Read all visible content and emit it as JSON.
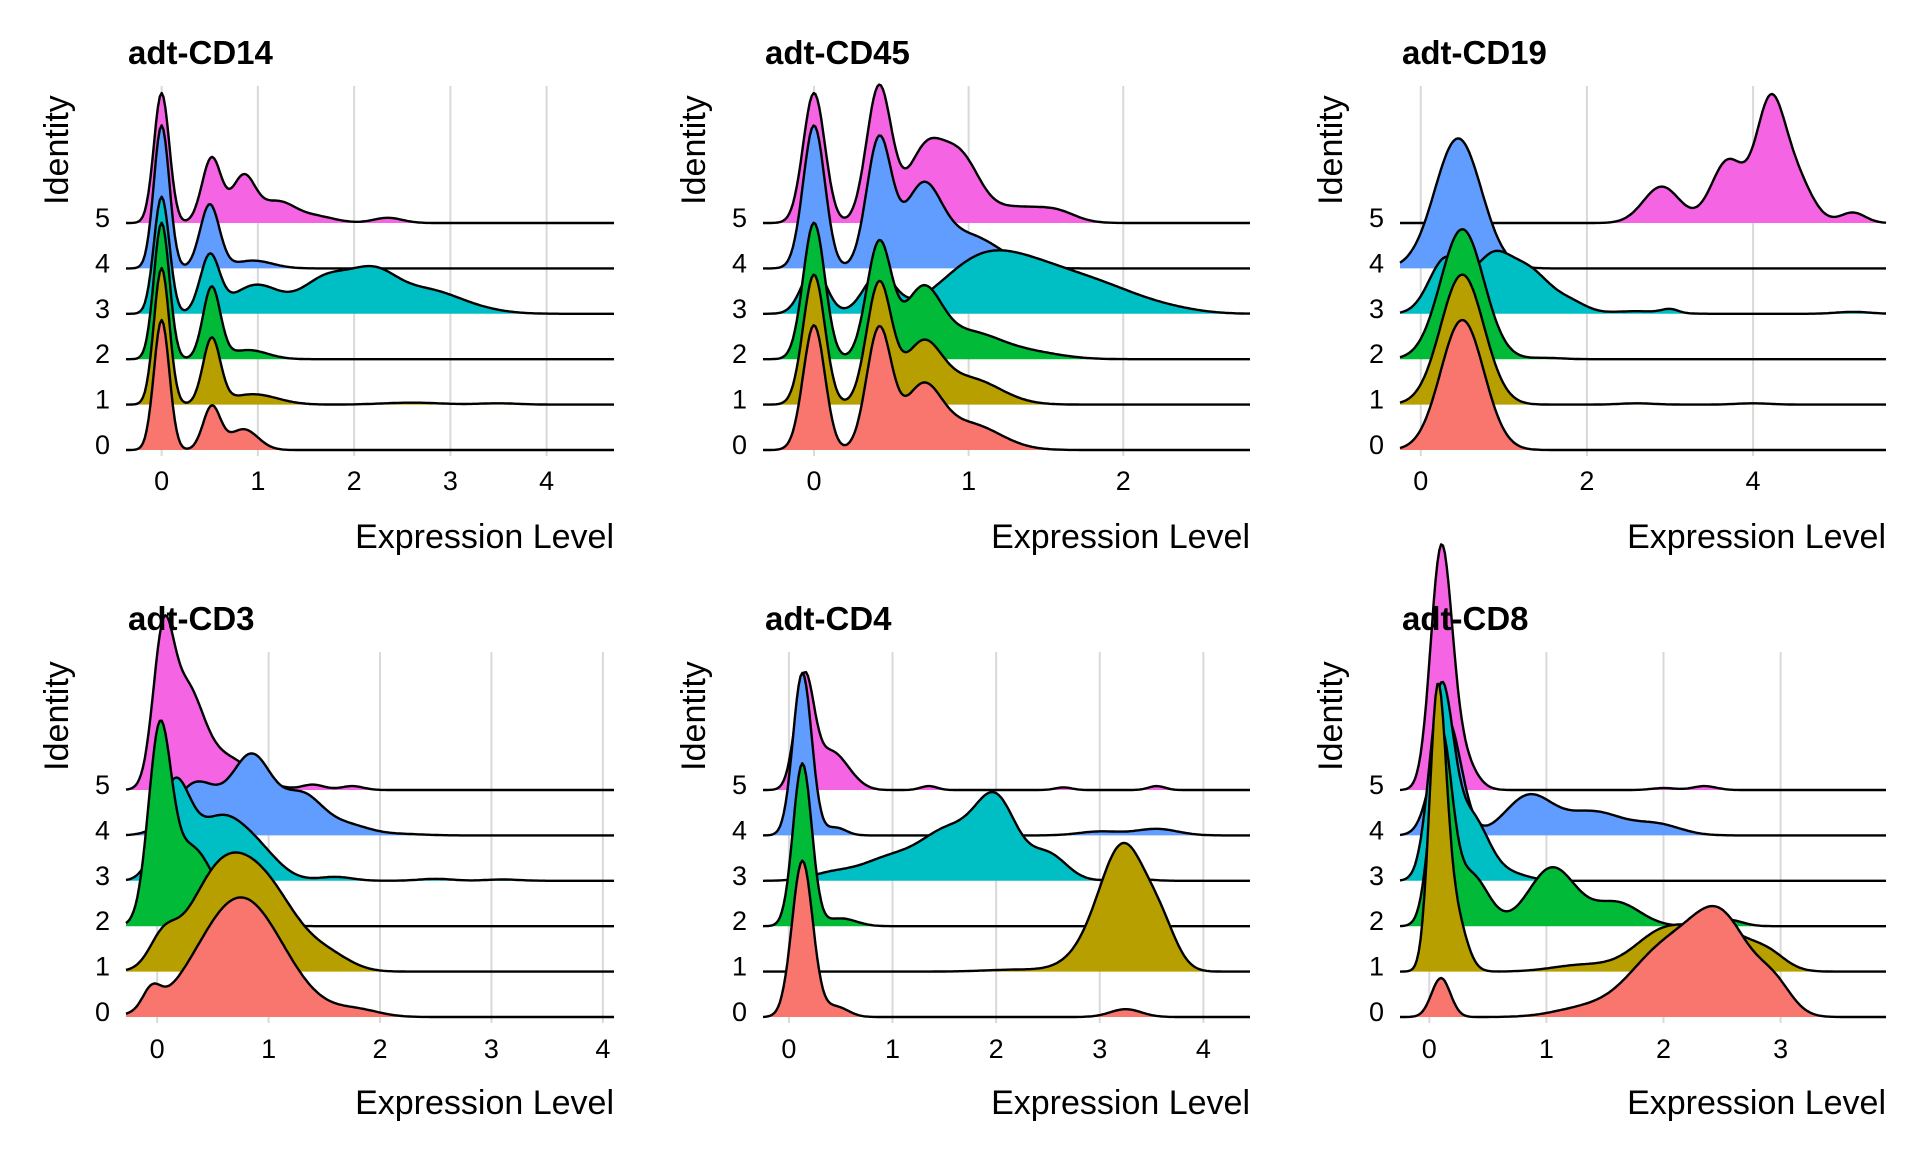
{
  "chart_data": [
    {
      "type": "area",
      "title": "adt-CD14",
      "xlabel": "Expression Level",
      "ylabel": "Identity",
      "xlim": [
        -0.37,
        4.7
      ],
      "xticks": [
        0,
        1,
        2,
        3,
        4
      ],
      "identities": [
        "0",
        "1",
        "2",
        "3",
        "4",
        "5"
      ],
      "grid": true,
      "legend": "none",
      "series": [
        {
          "identity": "0",
          "color": "#F8766D",
          "peaks": [
            [
              0.0,
              1.0,
              0.08
            ],
            [
              0.52,
              0.33,
              0.09
            ],
            [
              0.85,
              0.16,
              0.15
            ]
          ]
        },
        {
          "identity": "1",
          "color": "#B79F00",
          "peaks": [
            [
              0.0,
              1.05,
              0.08
            ],
            [
              0.52,
              0.5,
              0.09
            ],
            [
              0.95,
              0.08,
              0.25
            ],
            [
              2.6,
              0.015,
              0.3
            ],
            [
              3.5,
              0.01,
              0.2
            ]
          ]
        },
        {
          "identity": "2",
          "color": "#00BA38",
          "peaks": [
            [
              0.0,
              1.05,
              0.08
            ],
            [
              0.52,
              0.55,
              0.09
            ],
            [
              0.9,
              0.07,
              0.2
            ]
          ]
        },
        {
          "identity": "3",
          "color": "#00BFC4",
          "peaks": [
            [
              0.0,
              0.9,
              0.08
            ],
            [
              0.5,
              0.43,
              0.1
            ],
            [
              0.98,
              0.22,
              0.25
            ],
            [
              1.7,
              0.26,
              0.25
            ],
            [
              2.2,
              0.3,
              0.25
            ],
            [
              2.75,
              0.16,
              0.3
            ],
            [
              3.2,
              0.04,
              0.3
            ]
          ]
        },
        {
          "identity": "4",
          "color": "#619CFF",
          "peaks": [
            [
              0.0,
              1.1,
              0.08
            ],
            [
              0.5,
              0.49,
              0.1
            ],
            [
              0.95,
              0.06,
              0.2
            ]
          ]
        },
        {
          "identity": "5",
          "color": "#F564E3",
          "peaks": [
            [
              0.0,
              1.0,
              0.08
            ],
            [
              0.52,
              0.5,
              0.1
            ],
            [
              0.85,
              0.35,
              0.12
            ],
            [
              1.2,
              0.16,
              0.18
            ],
            [
              1.6,
              0.05,
              0.2
            ],
            [
              2.35,
              0.04,
              0.15
            ]
          ]
        }
      ]
    },
    {
      "type": "area",
      "title": "adt-CD45",
      "xlabel": "Expression Level",
      "ylabel": "Identity",
      "xlim": [
        -0.33,
        2.82
      ],
      "xticks": [
        0,
        1,
        2
      ],
      "identities": [
        "0",
        "1",
        "2",
        "3",
        "4",
        "5"
      ],
      "grid": true,
      "legend": "none",
      "series": [
        {
          "identity": "0",
          "color": "#F8766D",
          "peaks": [
            [
              0.0,
              0.96,
              0.07
            ],
            [
              0.42,
              0.92,
              0.08
            ],
            [
              0.7,
              0.45,
              0.12
            ],
            [
              1.0,
              0.2,
              0.2
            ]
          ]
        },
        {
          "identity": "1",
          "color": "#B79F00",
          "peaks": [
            [
              0.0,
              1.0,
              0.07
            ],
            [
              0.42,
              0.92,
              0.08
            ],
            [
              0.7,
              0.43,
              0.12
            ],
            [
              1.0,
              0.2,
              0.2
            ]
          ]
        },
        {
          "identity": "2",
          "color": "#00BA38",
          "peaks": [
            [
              0.0,
              1.05,
              0.07
            ],
            [
              0.42,
              0.88,
              0.08
            ],
            [
              0.7,
              0.5,
              0.12
            ],
            [
              1.0,
              0.2,
              0.2
            ],
            [
              1.4,
              0.05,
              0.2
            ]
          ]
        },
        {
          "identity": "3",
          "color": "#00BFC4",
          "peaks": [
            [
              0.0,
              0.35,
              0.08
            ],
            [
              0.42,
              0.3,
              0.1
            ],
            [
              1.05,
              0.34,
              0.25
            ],
            [
              1.45,
              0.3,
              0.28
            ],
            [
              1.9,
              0.15,
              0.25
            ],
            [
              2.3,
              0.03,
              0.2
            ]
          ]
        },
        {
          "identity": "4",
          "color": "#619CFF",
          "peaks": [
            [
              0.0,
              1.1,
              0.07
            ],
            [
              0.42,
              0.98,
              0.08
            ],
            [
              0.7,
              0.58,
              0.12
            ],
            [
              1.0,
              0.25,
              0.2
            ]
          ]
        },
        {
          "identity": "5",
          "color": "#F564E3",
          "peaks": [
            [
              0.0,
              1.0,
              0.07
            ],
            [
              0.42,
              1.04,
              0.08
            ],
            [
              0.72,
              0.55,
              0.12
            ],
            [
              0.95,
              0.45,
              0.12
            ],
            [
              1.3,
              0.12,
              0.2
            ],
            [
              1.58,
              0.06,
              0.12
            ]
          ]
        }
      ]
    },
    {
      "type": "area",
      "title": "adt-CD19",
      "xlabel": "Expression Level",
      "ylabel": "Identity",
      "xlim": [
        -0.25,
        5.6
      ],
      "xticks": [
        0,
        2,
        4
      ],
      "identities": [
        "0",
        "1",
        "2",
        "3",
        "4",
        "5"
      ],
      "grid": true,
      "legend": "none",
      "series": [
        {
          "identity": "0",
          "color": "#F8766D",
          "peaks": [
            [
              0.5,
              1.0,
              0.26
            ]
          ]
        },
        {
          "identity": "1",
          "color": "#B79F00",
          "peaks": [
            [
              0.5,
              1.0,
              0.26
            ],
            [
              2.6,
              0.01,
              0.2
            ],
            [
              4.0,
              0.01,
              0.2
            ]
          ]
        },
        {
          "identity": "2",
          "color": "#00BA38",
          "peaks": [
            [
              0.5,
              1.0,
              0.26
            ],
            [
              1.5,
              0.01,
              0.2
            ]
          ]
        },
        {
          "identity": "3",
          "color": "#00BFC4",
          "peaks": [
            [
              0.3,
              0.42,
              0.2
            ],
            [
              0.85,
              0.4,
              0.22
            ],
            [
              1.3,
              0.32,
              0.25
            ],
            [
              1.8,
              0.08,
              0.2
            ],
            [
              2.6,
              0.02,
              0.3
            ],
            [
              3.0,
              0.03,
              0.1
            ],
            [
              5.2,
              0.015,
              0.2
            ]
          ]
        },
        {
          "identity": "4",
          "color": "#619CFF",
          "peaks": [
            [
              0.45,
              1.0,
              0.28
            ]
          ]
        },
        {
          "identity": "5",
          "color": "#F564E3",
          "peaks": [
            [
              2.9,
              0.28,
              0.22
            ],
            [
              3.7,
              0.48,
              0.2
            ],
            [
              4.2,
              0.85,
              0.17
            ],
            [
              4.5,
              0.35,
              0.2
            ],
            [
              5.2,
              0.08,
              0.15
            ]
          ]
        }
      ]
    },
    {
      "type": "area",
      "title": "adt-CD3",
      "xlabel": "Expression Level",
      "ylabel": "Identity",
      "xlim": [
        -0.28,
        4.1
      ],
      "xticks": [
        0,
        1,
        2,
        3,
        4
      ],
      "identities": [
        "0",
        "1",
        "2",
        "3",
        "4",
        "5"
      ],
      "grid": true,
      "legend": "none",
      "series": [
        {
          "identity": "0",
          "color": "#F8766D",
          "peaks": [
            [
              -0.05,
              0.15,
              0.08
            ],
            [
              0.75,
              0.92,
              0.38
            ],
            [
              1.8,
              0.05,
              0.2
            ]
          ]
        },
        {
          "identity": "1",
          "color": "#B79F00",
          "peaks": [
            [
              0.05,
              0.2,
              0.12
            ],
            [
              0.55,
              0.7,
              0.28
            ],
            [
              1.0,
              0.55,
              0.28
            ],
            [
              1.55,
              0.1,
              0.2
            ]
          ]
        },
        {
          "identity": "2",
          "color": "#00BA38",
          "peaks": [
            [
              0.02,
              1.35,
              0.1
            ],
            [
              0.3,
              0.6,
              0.2
            ],
            [
              0.75,
              0.08,
              0.2
            ]
          ]
        },
        {
          "identity": "3",
          "color": "#00BFC4",
          "peaks": [
            [
              0.15,
              0.7,
              0.14
            ],
            [
              0.55,
              0.45,
              0.22
            ],
            [
              0.9,
              0.2,
              0.2
            ],
            [
              1.6,
              0.03,
              0.15
            ],
            [
              2.5,
              0.015,
              0.15
            ],
            [
              3.1,
              0.01,
              0.15
            ]
          ]
        },
        {
          "identity": "4",
          "color": "#619CFF",
          "peaks": [
            [
              0.35,
              0.4,
              0.2
            ],
            [
              0.85,
              0.6,
              0.18
            ],
            [
              1.3,
              0.3,
              0.18
            ],
            [
              1.7,
              0.08,
              0.2
            ],
            [
              2.2,
              0.01,
              0.2
            ]
          ]
        },
        {
          "identity": "5",
          "color": "#F564E3",
          "peaks": [
            [
              0.05,
              1.0,
              0.09
            ],
            [
              0.25,
              0.7,
              0.15
            ],
            [
              0.6,
              0.25,
              0.25
            ],
            [
              1.4,
              0.04,
              0.1
            ],
            [
              1.75,
              0.03,
              0.1
            ]
          ]
        }
      ]
    },
    {
      "type": "area",
      "title": "adt-CD4",
      "xlabel": "Expression Level",
      "ylabel": "Identity",
      "xlim": [
        -0.25,
        4.45
      ],
      "xticks": [
        0,
        1,
        2,
        3,
        4
      ],
      "identities": [
        "0",
        "1",
        "2",
        "3",
        "4",
        "5"
      ],
      "grid": true,
      "legend": "none",
      "series": [
        {
          "identity": "0",
          "color": "#F8766D",
          "peaks": [
            [
              0.13,
              1.2,
              0.1
            ],
            [
              0.45,
              0.08,
              0.12
            ],
            [
              3.25,
              0.06,
              0.15
            ]
          ]
        },
        {
          "identity": "1",
          "color": "#B79F00",
          "peaks": [
            [
              3.25,
              0.85,
              0.22
            ],
            [
              3.0,
              0.2,
              0.25
            ],
            [
              3.6,
              0.25,
              0.15
            ],
            [
              2.2,
              0.015,
              0.3
            ]
          ]
        },
        {
          "identity": "2",
          "color": "#00BA38",
          "peaks": [
            [
              0.13,
              1.25,
              0.09
            ],
            [
              0.5,
              0.06,
              0.15
            ]
          ]
        },
        {
          "identity": "3",
          "color": "#00BFC4",
          "peaks": [
            [
              1.0,
              0.18,
              0.3
            ],
            [
              1.55,
              0.35,
              0.25
            ],
            [
              2.0,
              0.6,
              0.2
            ],
            [
              2.5,
              0.2,
              0.18
            ],
            [
              0.4,
              0.05,
              0.2
            ],
            [
              3.3,
              0.02,
              0.15
            ]
          ]
        },
        {
          "identity": "4",
          "color": "#619CFF",
          "peaks": [
            [
              0.13,
              1.25,
              0.09
            ],
            [
              0.45,
              0.06,
              0.1
            ],
            [
              3.0,
              0.03,
              0.2
            ],
            [
              3.55,
              0.05,
              0.2
            ]
          ]
        },
        {
          "identity": "5",
          "color": "#F564E3",
          "peaks": [
            [
              0.15,
              0.85,
              0.09
            ],
            [
              0.4,
              0.28,
              0.14
            ],
            [
              0.6,
              0.05,
              0.12
            ],
            [
              1.35,
              0.03,
              0.08
            ],
            [
              2.65,
              0.02,
              0.08
            ],
            [
              3.55,
              0.03,
              0.08
            ]
          ]
        }
      ]
    },
    {
      "type": "area",
      "title": "adt-CD8",
      "xlabel": "Expression Level",
      "ylabel": "Identity",
      "xlim": [
        -0.25,
        3.9
      ],
      "xticks": [
        0,
        1,
        2,
        3
      ],
      "identities": [
        "0",
        "1",
        "2",
        "3",
        "4",
        "5"
      ],
      "grid": true,
      "legend": "none",
      "series": [
        {
          "identity": "0",
          "color": "#F8766D",
          "peaks": [
            [
              0.1,
              0.3,
              0.08
            ],
            [
              1.3,
              0.06,
              0.25
            ],
            [
              2.0,
              0.5,
              0.3
            ],
            [
              2.5,
              0.7,
              0.25
            ],
            [
              2.95,
              0.2,
              0.15
            ]
          ]
        },
        {
          "identity": "1",
          "color": "#B79F00",
          "peaks": [
            [
              0.07,
              2.0,
              0.07
            ],
            [
              0.2,
              0.5,
              0.1
            ],
            [
              1.3,
              0.05,
              0.25
            ],
            [
              2.0,
              0.3,
              0.25
            ],
            [
              2.5,
              0.3,
              0.25
            ],
            [
              2.9,
              0.1,
              0.15
            ]
          ]
        },
        {
          "identity": "2",
          "color": "#00BA38",
          "peaks": [
            [
              0.1,
              1.4,
              0.09
            ],
            [
              0.35,
              0.4,
              0.15
            ],
            [
              1.05,
              0.45,
              0.2
            ],
            [
              1.6,
              0.18,
              0.2
            ],
            [
              2.55,
              0.05,
              0.12
            ]
          ]
        },
        {
          "identity": "3",
          "color": "#00BFC4",
          "peaks": [
            [
              0.1,
              1.4,
              0.1
            ],
            [
              0.35,
              0.5,
              0.15
            ],
            [
              0.7,
              0.05,
              0.15
            ]
          ]
        },
        {
          "identity": "4",
          "color": "#619CFF",
          "peaks": [
            [
              0.15,
              0.9,
              0.12
            ],
            [
              0.85,
              0.3,
              0.2
            ],
            [
              1.4,
              0.18,
              0.25
            ],
            [
              1.95,
              0.08,
              0.2
            ]
          ]
        },
        {
          "identity": "5",
          "color": "#F564E3",
          "peaks": [
            [
              0.1,
              1.75,
              0.09
            ],
            [
              0.25,
              0.3,
              0.12
            ],
            [
              2.0,
              0.015,
              0.1
            ],
            [
              2.35,
              0.03,
              0.1
            ]
          ]
        }
      ]
    }
  ]
}
